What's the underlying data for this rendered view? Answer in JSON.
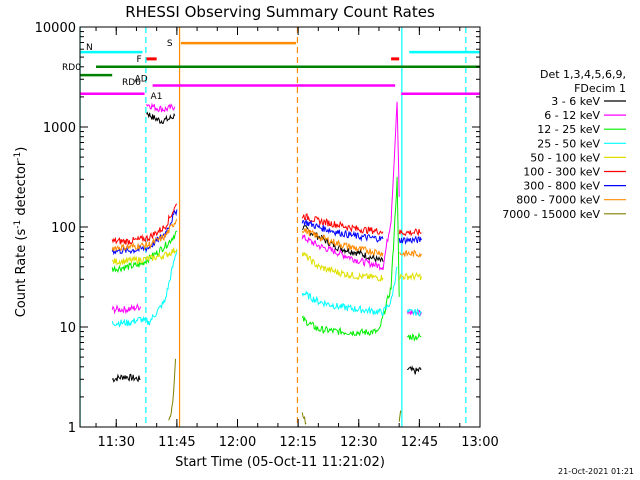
{
  "chart_data": {
    "type": "line",
    "title": "RHESSI Observing Summary Count Rates",
    "xlabel": "Start Time (05-Oct-11 11:21:02)",
    "ylabel_main": "Count Rate (s",
    "ylabel_sup": "-1",
    "ylabel_tail": " detector",
    "ylabel_sup2": "-1",
    "ylabel_close": ")",
    "ylog": true,
    "ylim": [
      1,
      10000
    ],
    "xlim": [
      "11:21:02",
      "13:00:00"
    ],
    "x_ticks": [
      "11:30",
      "11:45",
      "12:00",
      "12:15",
      "12:30",
      "12:45",
      "13:00"
    ],
    "y_ticks": [
      "1",
      "10",
      "100",
      "1000",
      "10000"
    ],
    "legend": {
      "position": "right",
      "header1": "Det 1,3,4,5,6,9,",
      "header2": "FDecim 1",
      "entries": [
        {
          "label": "3 - 6 keV",
          "color": "#000000"
        },
        {
          "label": "6 - 12 keV",
          "color": "#ff00ff"
        },
        {
          "label": "12 - 25 keV",
          "color": "#00ee00"
        },
        {
          "label": "25 - 50 keV",
          "color": "#00ffff"
        },
        {
          "label": "50 - 100 keV",
          "color": "#e0e000"
        },
        {
          "label": "100 - 300 keV",
          "color": "#ff0000"
        },
        {
          "label": "300 - 800 keV",
          "color": "#0000ff"
        },
        {
          "label": "800 - 7000 keV",
          "color": "#ff8c00"
        },
        {
          "label": "7000 - 15000 keV",
          "color": "#808000"
        }
      ]
    },
    "flag_labels": {
      "rd0": "RD0",
      "rd6": "RD6",
      "ad": "AD",
      "a1": "A1",
      "f": "F",
      "n": "N",
      "s": "S"
    },
    "colors": {
      "black": "#000000",
      "magenta": "#ff00ff",
      "green": "#00ee00",
      "cyan": "#00ffff",
      "yellow": "#e0e000",
      "red": "#ff0000",
      "blue": "#0000ff",
      "orange": "#ff8c00",
      "olive": "#808000",
      "rd": "#008000"
    },
    "series": [
      {
        "name": "3 - 6 keV",
        "color": "#000000",
        "segments": [
          [
            [
              "11:29:00",
              3.0
            ],
            [
              "11:32:00",
              3.2
            ],
            [
              "11:36:00",
              3.0
            ]
          ],
          [
            [
              "11:37:30",
              1400
            ],
            [
              "11:39:00",
              1250
            ],
            [
              "11:41:00",
              1150
            ],
            [
              "11:43:00",
              1200
            ],
            [
              "11:44:30",
              1300
            ]
          ],
          [
            [
              "12:16:00",
              100
            ],
            [
              "12:20:00",
              80
            ],
            [
              "12:25:00",
              62
            ],
            [
              "12:30:00",
              55
            ],
            [
              "12:34:00",
              48
            ],
            [
              "12:36:00",
              45
            ]
          ],
          [
            [
              "12:42:00",
              3.8
            ],
            [
              "12:44:00",
              3.6
            ],
            [
              "12:45:30",
              3.8
            ]
          ]
        ]
      },
      {
        "name": "6 - 12 keV",
        "color": "#ff00ff",
        "segments": [
          [
            [
              "11:29:00",
              15
            ],
            [
              "11:33:00",
              15
            ],
            [
              "11:36:00",
              16
            ]
          ],
          [
            [
              "11:37:30",
              1700
            ],
            [
              "11:40:00",
              1550
            ],
            [
              "11:42:00",
              1500
            ],
            [
              "11:44:30",
              1600
            ]
          ],
          [
            [
              "12:16:00",
              80
            ],
            [
              "12:20:00",
              65
            ],
            [
              "12:25:00",
              55
            ],
            [
              "12:30:00",
              46
            ],
            [
              "12:36:00",
              40
            ],
            [
              "12:38:00",
              120
            ],
            [
              "12:39:30",
              1800
            ],
            [
              "12:40:00",
              200
            ]
          ],
          [
            [
              "12:42:00",
              14
            ],
            [
              "12:45:30",
              14
            ]
          ]
        ]
      },
      {
        "name": "12 - 25 keV",
        "color": "#00ee00",
        "segments": [
          [
            [
              "11:29:00",
              38
            ],
            [
              "11:33:00",
              40
            ],
            [
              "11:36:00",
              42
            ],
            [
              "11:37:00",
              45
            ],
            [
              "11:40:00",
              55
            ],
            [
              "11:43:00",
              70
            ],
            [
              "11:45:00",
              90
            ]
          ],
          [
            [
              "12:16:00",
              12
            ],
            [
              "12:20:00",
              9.5
            ],
            [
              "12:25:00",
              9
            ],
            [
              "12:30:00",
              8.8
            ],
            [
              "12:35:00",
              9
            ],
            [
              "12:38:00",
              25
            ],
            [
              "12:39:30",
              300
            ],
            [
              "12:40:00",
              20
            ]
          ],
          [
            [
              "12:42:00",
              8
            ],
            [
              "12:45:30",
              8
            ]
          ]
        ]
      },
      {
        "name": "25 - 50 keV",
        "color": "#00ffff",
        "segments": [
          [
            [
              "11:29:00",
              11
            ],
            [
              "11:33:00",
              11
            ],
            [
              "11:36:00",
              12
            ],
            [
              "11:38:00",
              11
            ],
            [
              "11:42:00",
              18
            ],
            [
              "11:45:00",
              60
            ]
          ],
          [
            [
              "12:16:00",
              22
            ],
            [
              "12:20:00",
              18
            ],
            [
              "12:25:00",
              16
            ],
            [
              "12:30:00",
              15
            ],
            [
              "12:36:00",
              14
            ],
            [
              "12:38:00",
              18
            ],
            [
              "12:39:30",
              40
            ]
          ],
          [
            [
              "12:42:00",
              14
            ],
            [
              "12:45:30",
              14
            ]
          ]
        ]
      },
      {
        "name": "50 - 100 keV",
        "color": "#e0e000",
        "segments": [
          [
            [
              "11:29:00",
              45
            ],
            [
              "11:33:00",
              46
            ],
            [
              "11:36:00",
              47
            ],
            [
              "11:38:00",
              48
            ],
            [
              "11:42:00",
              52
            ],
            [
              "11:45:00",
              60
            ]
          ],
          [
            [
              "12:16:00",
              55
            ],
            [
              "12:20:00",
              40
            ],
            [
              "12:25:00",
              35
            ],
            [
              "12:30:00",
              32
            ],
            [
              "12:36:00",
              31
            ]
          ],
          [
            [
              "12:40:00",
              32
            ],
            [
              "12:45:30",
              32
            ]
          ]
        ]
      },
      {
        "name": "100 - 300 keV",
        "color": "#ff0000",
        "segments": [
          [
            [
              "11:29:00",
              72
            ],
            [
              "11:33:00",
              72
            ],
            [
              "11:36:00",
              75
            ],
            [
              "11:38:00",
              78
            ],
            [
              "11:42:00",
              100
            ],
            [
              "11:45:00",
              170
            ]
          ],
          [
            [
              "12:16:00",
              130
            ],
            [
              "12:20:00",
              115
            ],
            [
              "12:25:00",
              105
            ],
            [
              "12:30:00",
              95
            ],
            [
              "12:36:00",
              90
            ]
          ],
          [
            [
              "12:40:00",
              88
            ],
            [
              "12:45:30",
              88
            ]
          ]
        ]
      },
      {
        "name": "300 - 800 keV",
        "color": "#0000ff",
        "segments": [
          [
            [
              "11:29:00",
              58
            ],
            [
              "11:33:00",
              58
            ],
            [
              "11:36:00",
              60
            ],
            [
              "11:38:00",
              62
            ],
            [
              "11:42:00",
              85
            ],
            [
              "11:45:00",
              150
            ]
          ],
          [
            [
              "12:16:00",
              115
            ],
            [
              "12:20:00",
              100
            ],
            [
              "12:25:00",
              88
            ],
            [
              "12:30:00",
              80
            ],
            [
              "12:36:00",
              76
            ]
          ],
          [
            [
              "12:40:00",
              74
            ],
            [
              "12:45:30",
              74
            ]
          ]
        ]
      },
      {
        "name": "800 - 7000 keV",
        "color": "#ff8c00",
        "segments": [
          [
            [
              "11:29:00",
              62
            ],
            [
              "11:33:00",
              63
            ],
            [
              "11:36:00",
              65
            ],
            [
              "11:38:00",
              66
            ],
            [
              "11:42:00",
              80
            ],
            [
              "11:45:00",
              120
            ]
          ],
          [
            [
              "12:16:00",
              95
            ],
            [
              "12:20:00",
              80
            ],
            [
              "12:25:00",
              68
            ],
            [
              "12:30:00",
              60
            ],
            [
              "12:36:00",
              55
            ]
          ],
          [
            [
              "12:40:00",
              54
            ],
            [
              "12:45:30",
              54
            ]
          ]
        ]
      },
      {
        "name": "7000 - 15000 keV",
        "color": "#808000",
        "segments": [
          [
            [
              "11:43:00",
              1.1
            ],
            [
              "11:44:00",
              1.8
            ],
            [
              "11:44:40",
              4.8
            ]
          ],
          [
            [
              "12:16:00",
              1.4
            ],
            [
              "12:17:00",
              1.1
            ]
          ],
          [
            [
              "12:40:00",
              1.2
            ],
            [
              "12:40:30",
              1.4
            ]
          ]
        ]
      }
    ],
    "flags": [
      {
        "id": "n_flag",
        "label": "N",
        "color": "#00ffff",
        "y": 5600,
        "segments": [
          [
            "11:21:02",
            "11:36:30"
          ],
          [
            "12:42:30",
            "13:00:00"
          ]
        ]
      },
      {
        "id": "s_flag",
        "label": "S",
        "color": "#ff8c00",
        "y": 6900,
        "segments": [
          [
            "11:46:00",
            "12:14:30"
          ]
        ]
      },
      {
        "id": "f_flag",
        "label": "F",
        "color": "#ff0000",
        "y": 4800,
        "segments": [
          [
            "11:37:30",
            "11:40:00"
          ],
          [
            "12:38:00",
            "12:40:00"
          ]
        ]
      },
      {
        "id": "rd0_flag",
        "label": "RD0",
        "color": "#008000",
        "y": 4000,
        "segments": [
          [
            "11:25:00",
            "13:00:00"
          ]
        ]
      },
      {
        "id": "rd6_flag",
        "label": "RD6",
        "color": "#008000",
        "y": 3300,
        "segments": [
          [
            "11:21:02",
            "11:29:00"
          ]
        ]
      },
      {
        "id": "ad_flag",
        "label": "AD",
        "color": "#ff00ff",
        "y": 2600,
        "segments": [
          [
            "11:39:00",
            "12:39:00"
          ]
        ]
      },
      {
        "id": "a1_flag",
        "label": "A1",
        "color": "#ff00ff",
        "y": 2150,
        "segments": [
          [
            "11:21:02",
            "11:37:00"
          ],
          [
            "12:40:30",
            "13:00:00"
          ]
        ]
      }
    ],
    "vlines": [
      {
        "t": "11:21:03",
        "color": "#00ffff",
        "style": "solid"
      },
      {
        "t": "11:37:20",
        "color": "#00ffff",
        "style": "dashed"
      },
      {
        "t": "11:45:40",
        "color": "#ff8c00",
        "style": "solid"
      },
      {
        "t": "12:14:50",
        "color": "#ff8c00",
        "style": "dashed"
      },
      {
        "t": "12:40:40",
        "color": "#00ffff",
        "style": "solid"
      },
      {
        "t": "12:56:30",
        "color": "#00ffff",
        "style": "dashed"
      }
    ]
  },
  "footer": {
    "date": "21-Oct-2021 01:21"
  }
}
